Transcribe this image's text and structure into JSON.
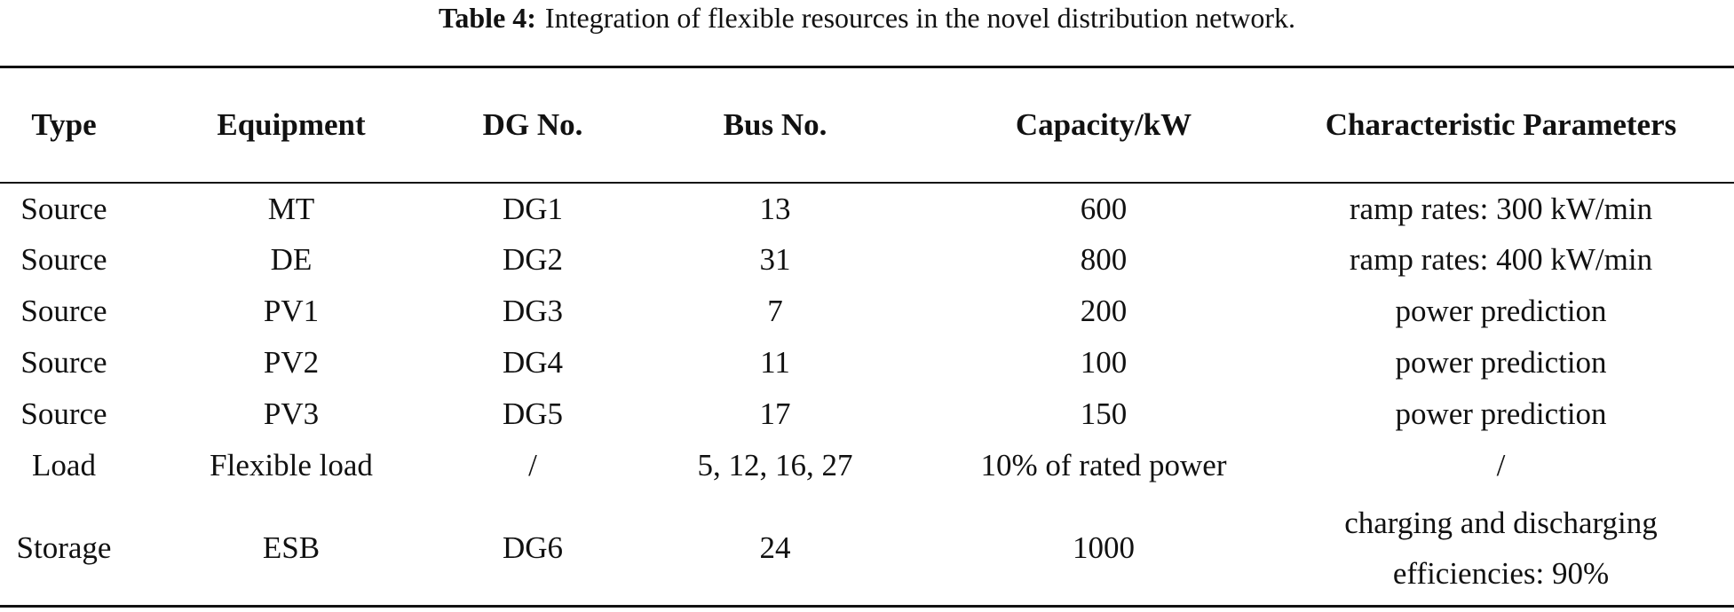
{
  "caption": {
    "label": "Table 4:",
    "text": "Integration of flexible resources in the novel distribution network."
  },
  "table": {
    "header": [
      "Type",
      "Equipment",
      "DG No.",
      "Bus No.",
      "Capacity/kW",
      "Characteristic Parameters"
    ],
    "rows": [
      [
        "Source",
        "MT",
        "DG1",
        "13",
        "600",
        "ramp rates: 300 kW/min"
      ],
      [
        "Source",
        "DE",
        "DG2",
        "31",
        "800",
        "ramp rates: 400 kW/min"
      ],
      [
        "Source",
        "PV1",
        "DG3",
        "7",
        "200",
        "power prediction"
      ],
      [
        "Source",
        "PV2",
        "DG4",
        "11",
        "100",
        "power prediction"
      ],
      [
        "Source",
        "PV3",
        "DG5",
        "17",
        "150",
        "power prediction"
      ],
      [
        "Load",
        "Flexible load",
        "/",
        "5, 12, 16, 27",
        "10% of rated power",
        "/"
      ],
      [
        "Storage",
        "ESB",
        "DG6",
        "24",
        "1000",
        "charging and discharging efficiencies: 90%"
      ]
    ]
  }
}
